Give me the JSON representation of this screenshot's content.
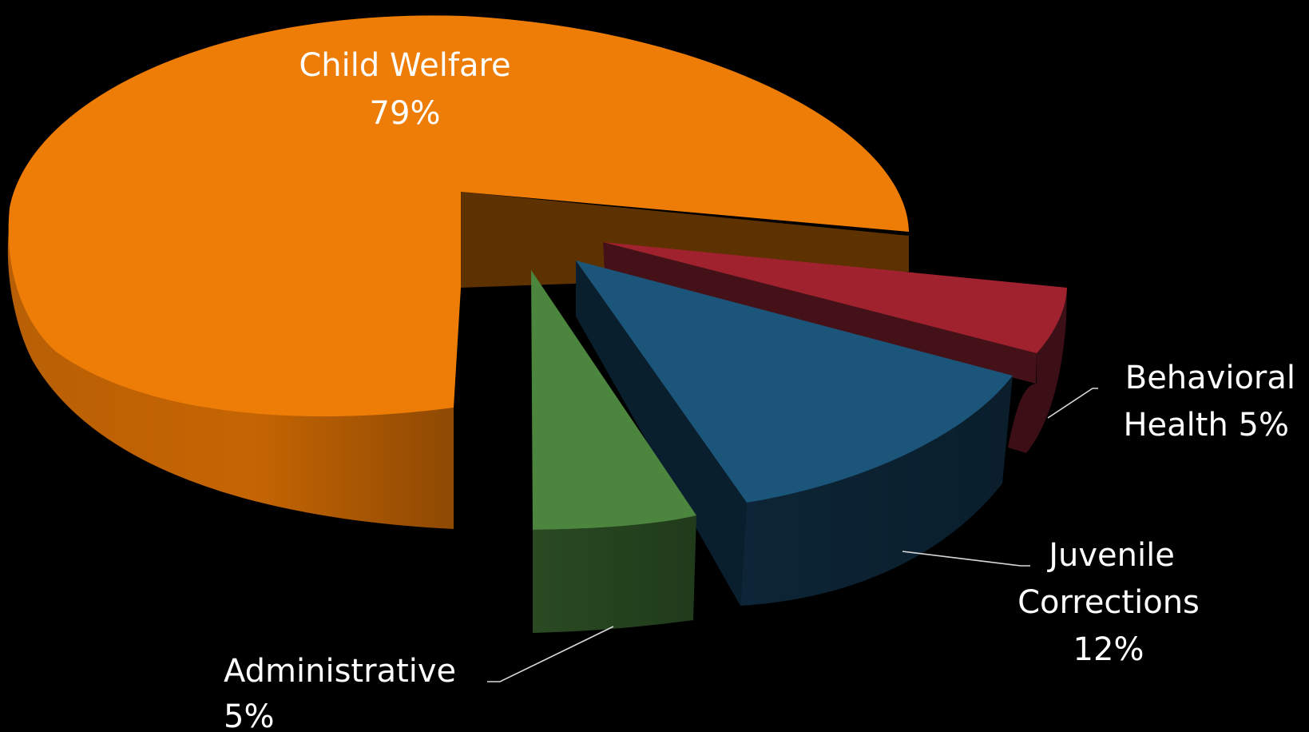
{
  "chart_data": {
    "type": "pie",
    "style": "3d-exploded",
    "title": "",
    "slices": [
      {
        "label": "Child Welfare",
        "value": 79,
        "value_label": "79%",
        "color": "#ED7D07"
      },
      {
        "label": "Behavioral Health",
        "value": 5,
        "value_label": "5%",
        "color": "#A0222F"
      },
      {
        "label": "Juvenile Corrections",
        "value": 12,
        "value_label": "12%",
        "color": "#1B557A"
      },
      {
        "label": "Administrative",
        "value": 5,
        "value_label": "5%",
        "color": "#4C853E"
      }
    ],
    "labels": {
      "child_welfare": [
        "Child Welfare",
        "79%"
      ],
      "behavioral_health": [
        "Behavioral",
        "Health 5%"
      ],
      "juvenile_corrections": [
        "Juvenile",
        "Corrections",
        "12%"
      ],
      "administrative": [
        "Administrative",
        "5%"
      ]
    },
    "background": "#000000"
  }
}
